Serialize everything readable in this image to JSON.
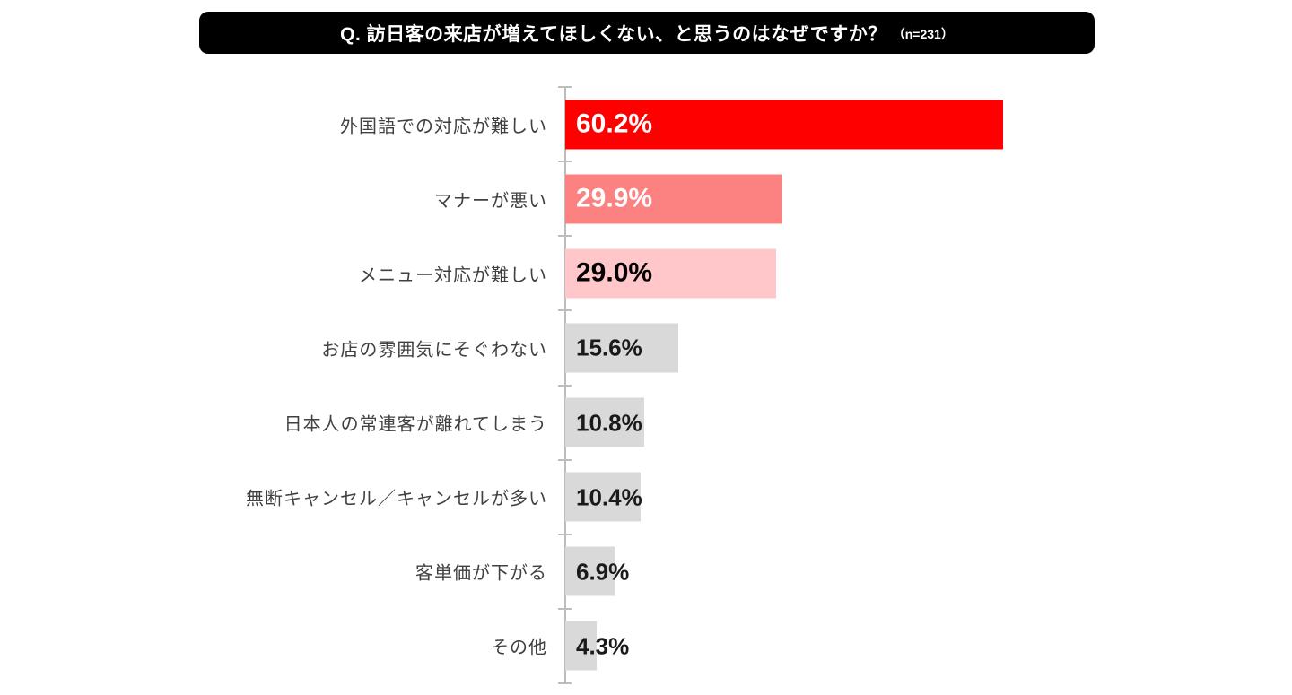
{
  "header": {
    "title": "Q. 訪日客の来店が増えてほしくない、と思うのはなぜですか？",
    "sample_note": "（n=231）"
  },
  "chart_data": {
    "type": "bar",
    "orientation": "horizontal",
    "title": "Q. 訪日客の来店が増えてほしくない、と思うのはなぜですか？（n=231）",
    "sample_size": 231,
    "unit": "%",
    "categories": [
      "外国語での対応が難しい",
      "マナーが悪い",
      "メニュー対応が難しい",
      "お店の雰囲気にそぐわない",
      "日本人の常連客が離れてしまう",
      "無断キャンセル／キャンセルが多い",
      "客単価が下がる",
      "その他"
    ],
    "values": [
      60.2,
      29.9,
      29.0,
      15.6,
      10.8,
      10.4,
      6.9,
      4.3
    ],
    "value_labels": [
      "60.2%",
      "29.9%",
      "29.0%",
      "15.6%",
      "10.8%",
      "10.4%",
      "6.9%",
      "4.3%"
    ],
    "bar_colors": [
      "#FF0000",
      "#FC8181",
      "#FFC7C9",
      "#D9D9D9",
      "#D9D9D9",
      "#D9D9D9",
      "#D9D9D9",
      "#D9D9D9"
    ],
    "value_label_colors": [
      "#FFFFFF",
      "#FFFFFF",
      "#000000",
      "#1A1A1A",
      "#1A1A1A",
      "#1A1A1A",
      "#1A1A1A",
      "#1A1A1A"
    ],
    "layout": {
      "value_axis_visible": false,
      "gridlines": false,
      "legend": "none",
      "category_axis_line_color": "#BDBDBD",
      "value_labels_position": "inside-base",
      "category_label_color": "#404040",
      "title_banner_bg": "#000000",
      "title_banner_text_color": "#FFFFFF"
    }
  }
}
